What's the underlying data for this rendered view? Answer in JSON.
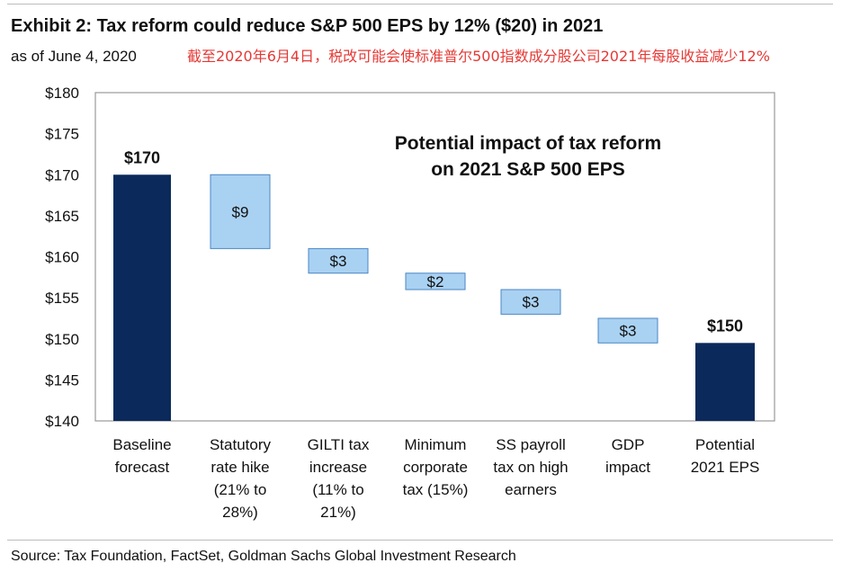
{
  "header": {
    "title": "Exhibit 2: Tax reform could reduce S&P 500 EPS by 12% ($20) in 2021",
    "subtitle": "as of June 4, 2020",
    "annotation": "截至2020年6月4日，税改可能会使标准普尔500指数成分股公司2021年每股收益减少12%"
  },
  "chart_data": {
    "type": "bar",
    "subtype": "waterfall",
    "title_lines": [
      "Potential impact of tax reform",
      "on 2021  S&P 500 EPS"
    ],
    "categories": [
      [
        "Baseline",
        "forecast"
      ],
      [
        "Statutory",
        "rate hike",
        "(21% to",
        "28%)"
      ],
      [
        "GILTI tax",
        "increase",
        "(11% to",
        "21%)"
      ],
      [
        "Minimum",
        "corporate",
        "tax (15%)"
      ],
      [
        "SS payroll",
        "tax on high",
        "earners"
      ],
      [
        "GDP",
        "impact"
      ],
      [
        "Potential",
        "2021 EPS"
      ]
    ],
    "bars": [
      {
        "kind": "total",
        "start": 140,
        "end": 170,
        "label": "$170"
      },
      {
        "kind": "delta",
        "start": 170,
        "end": 161,
        "label": "$9"
      },
      {
        "kind": "delta",
        "start": 161,
        "end": 158,
        "label": "$3"
      },
      {
        "kind": "delta",
        "start": 158,
        "end": 156,
        "label": "$2"
      },
      {
        "kind": "delta",
        "start": 156,
        "end": 153,
        "label": "$3"
      },
      {
        "kind": "delta",
        "start": 152.5,
        "end": 149.5,
        "label": "$3"
      },
      {
        "kind": "total",
        "start": 140,
        "end": 149.5,
        "label": "$150"
      }
    ],
    "yticks": [
      "$140",
      "$145",
      "$150",
      "$155",
      "$160",
      "$165",
      "$170",
      "$175",
      "$180"
    ],
    "ylim": [
      140,
      180
    ],
    "colors": {
      "total": "#0b2a5b",
      "delta_fill": "#a9d1f2",
      "delta_stroke": "#4a86c5",
      "frame": "#9a9a9a"
    }
  },
  "footer": {
    "source": "Source: Tax Foundation, FactSet, Goldman Sachs Global Investment Research"
  }
}
